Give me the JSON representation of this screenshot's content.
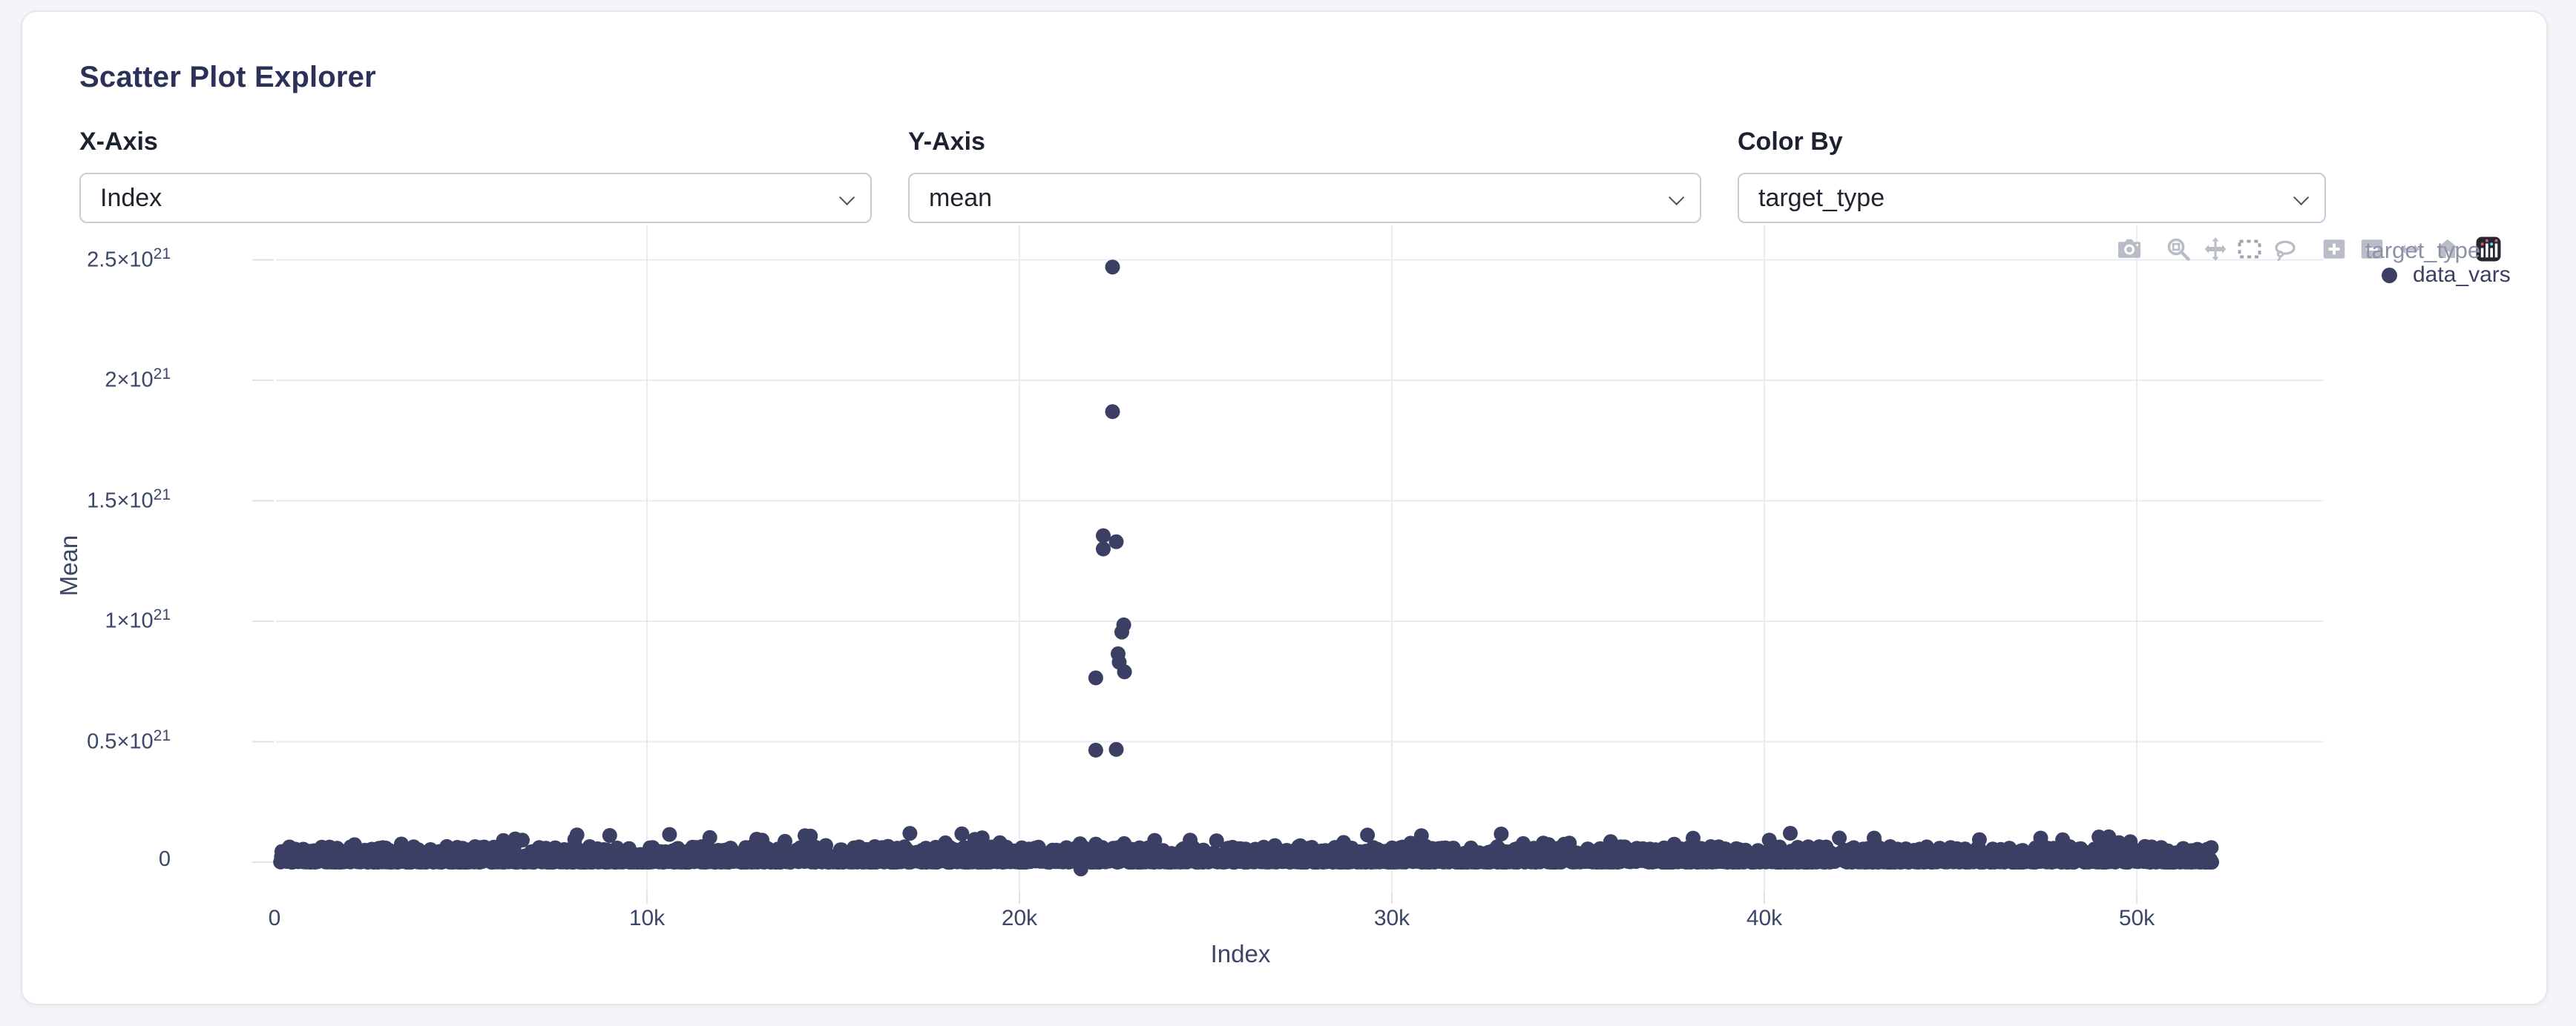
{
  "colors": {
    "page_background": "#f3f5f8",
    "card_background": "#ffffff",
    "accent_point": "#3a3f63",
    "gridline": "#e9ebf1",
    "tick_dash": "#dfe2e9",
    "tick_text": "#3b4769",
    "modebar_icon": "#b9bdc7",
    "legend_title_text": "#8c93a9"
  },
  "header": {
    "title": "Scatter Plot Explorer"
  },
  "controls": {
    "x_axis": {
      "label": "X-Axis",
      "value": "Index"
    },
    "y_axis": {
      "label": "Y-Axis",
      "value": "mean"
    },
    "color_by": {
      "label": "Color By",
      "value": "target_type"
    }
  },
  "modebar": {
    "icons": [
      "camera",
      "zoom",
      "pan",
      "box-select",
      "lasso-select",
      "zoom-in",
      "zoom-out",
      "autoscale",
      "reset-axes",
      "plotly-logo"
    ]
  },
  "chart_data": {
    "type": "scatter",
    "title": "",
    "xlabel": "Index",
    "ylabel": "Mean",
    "xlim": [
      -3000,
      55000
    ],
    "ylim": [
      -1e+20,
      2.63e+21
    ],
    "grid": true,
    "legend": {
      "position": "top-right",
      "title": "target_type",
      "entries": [
        {
          "label": "data_vars",
          "color": "#3a3f63"
        }
      ]
    },
    "x_ticks": [
      {
        "value": 0,
        "label": "0"
      },
      {
        "value": 10000,
        "label": "10k"
      },
      {
        "value": 20000,
        "label": "20k"
      },
      {
        "value": 30000,
        "label": "30k"
      },
      {
        "value": 40000,
        "label": "40k"
      },
      {
        "value": 50000,
        "label": "50k"
      }
    ],
    "y_ticks": [
      {
        "value": 0,
        "label": "0"
      },
      {
        "value": 5e+20,
        "label": "0.5×10^21"
      },
      {
        "value": 1e+21,
        "label": "1×10^21"
      },
      {
        "value": 1.5e+21,
        "label": "1.5×10^21"
      },
      {
        "value": 2e+21,
        "label": "2×10^21"
      },
      {
        "value": 2.5e+21,
        "label": "2.5×10^21"
      }
    ],
    "series": [
      {
        "name": "data_vars",
        "color": "#3a3f63",
        "marker_radius_px": 10,
        "outliers": [
          [
            22500,
            2.47e+21
          ],
          [
            22500,
            1.87e+21
          ],
          [
            22250,
            1.355e+21
          ],
          [
            22600,
            1.33e+21
          ],
          [
            22250,
            1.3e+21
          ],
          [
            22800,
            9.85e+20
          ],
          [
            22750,
            9.55e+20
          ],
          [
            22650,
            8.65e+20
          ],
          [
            22680,
            8.3e+20
          ],
          [
            22820,
            7.9e+20
          ],
          [
            22050,
            7.65e+20
          ],
          [
            22050,
            4.65e+20
          ],
          [
            22600,
            4.68e+20
          ],
          [
            21650,
            -2.8e+19
          ]
        ],
        "dense_band": {
          "description": "continuous dense strip of points hugging y≈0 across the full index range",
          "x_min": 150,
          "x_max": 52030,
          "count": 2600,
          "y_min": 0,
          "y_typical_max": 6.5e+19,
          "y_bump_max": 1.2e+20,
          "seed": 1234567
        }
      }
    ]
  }
}
